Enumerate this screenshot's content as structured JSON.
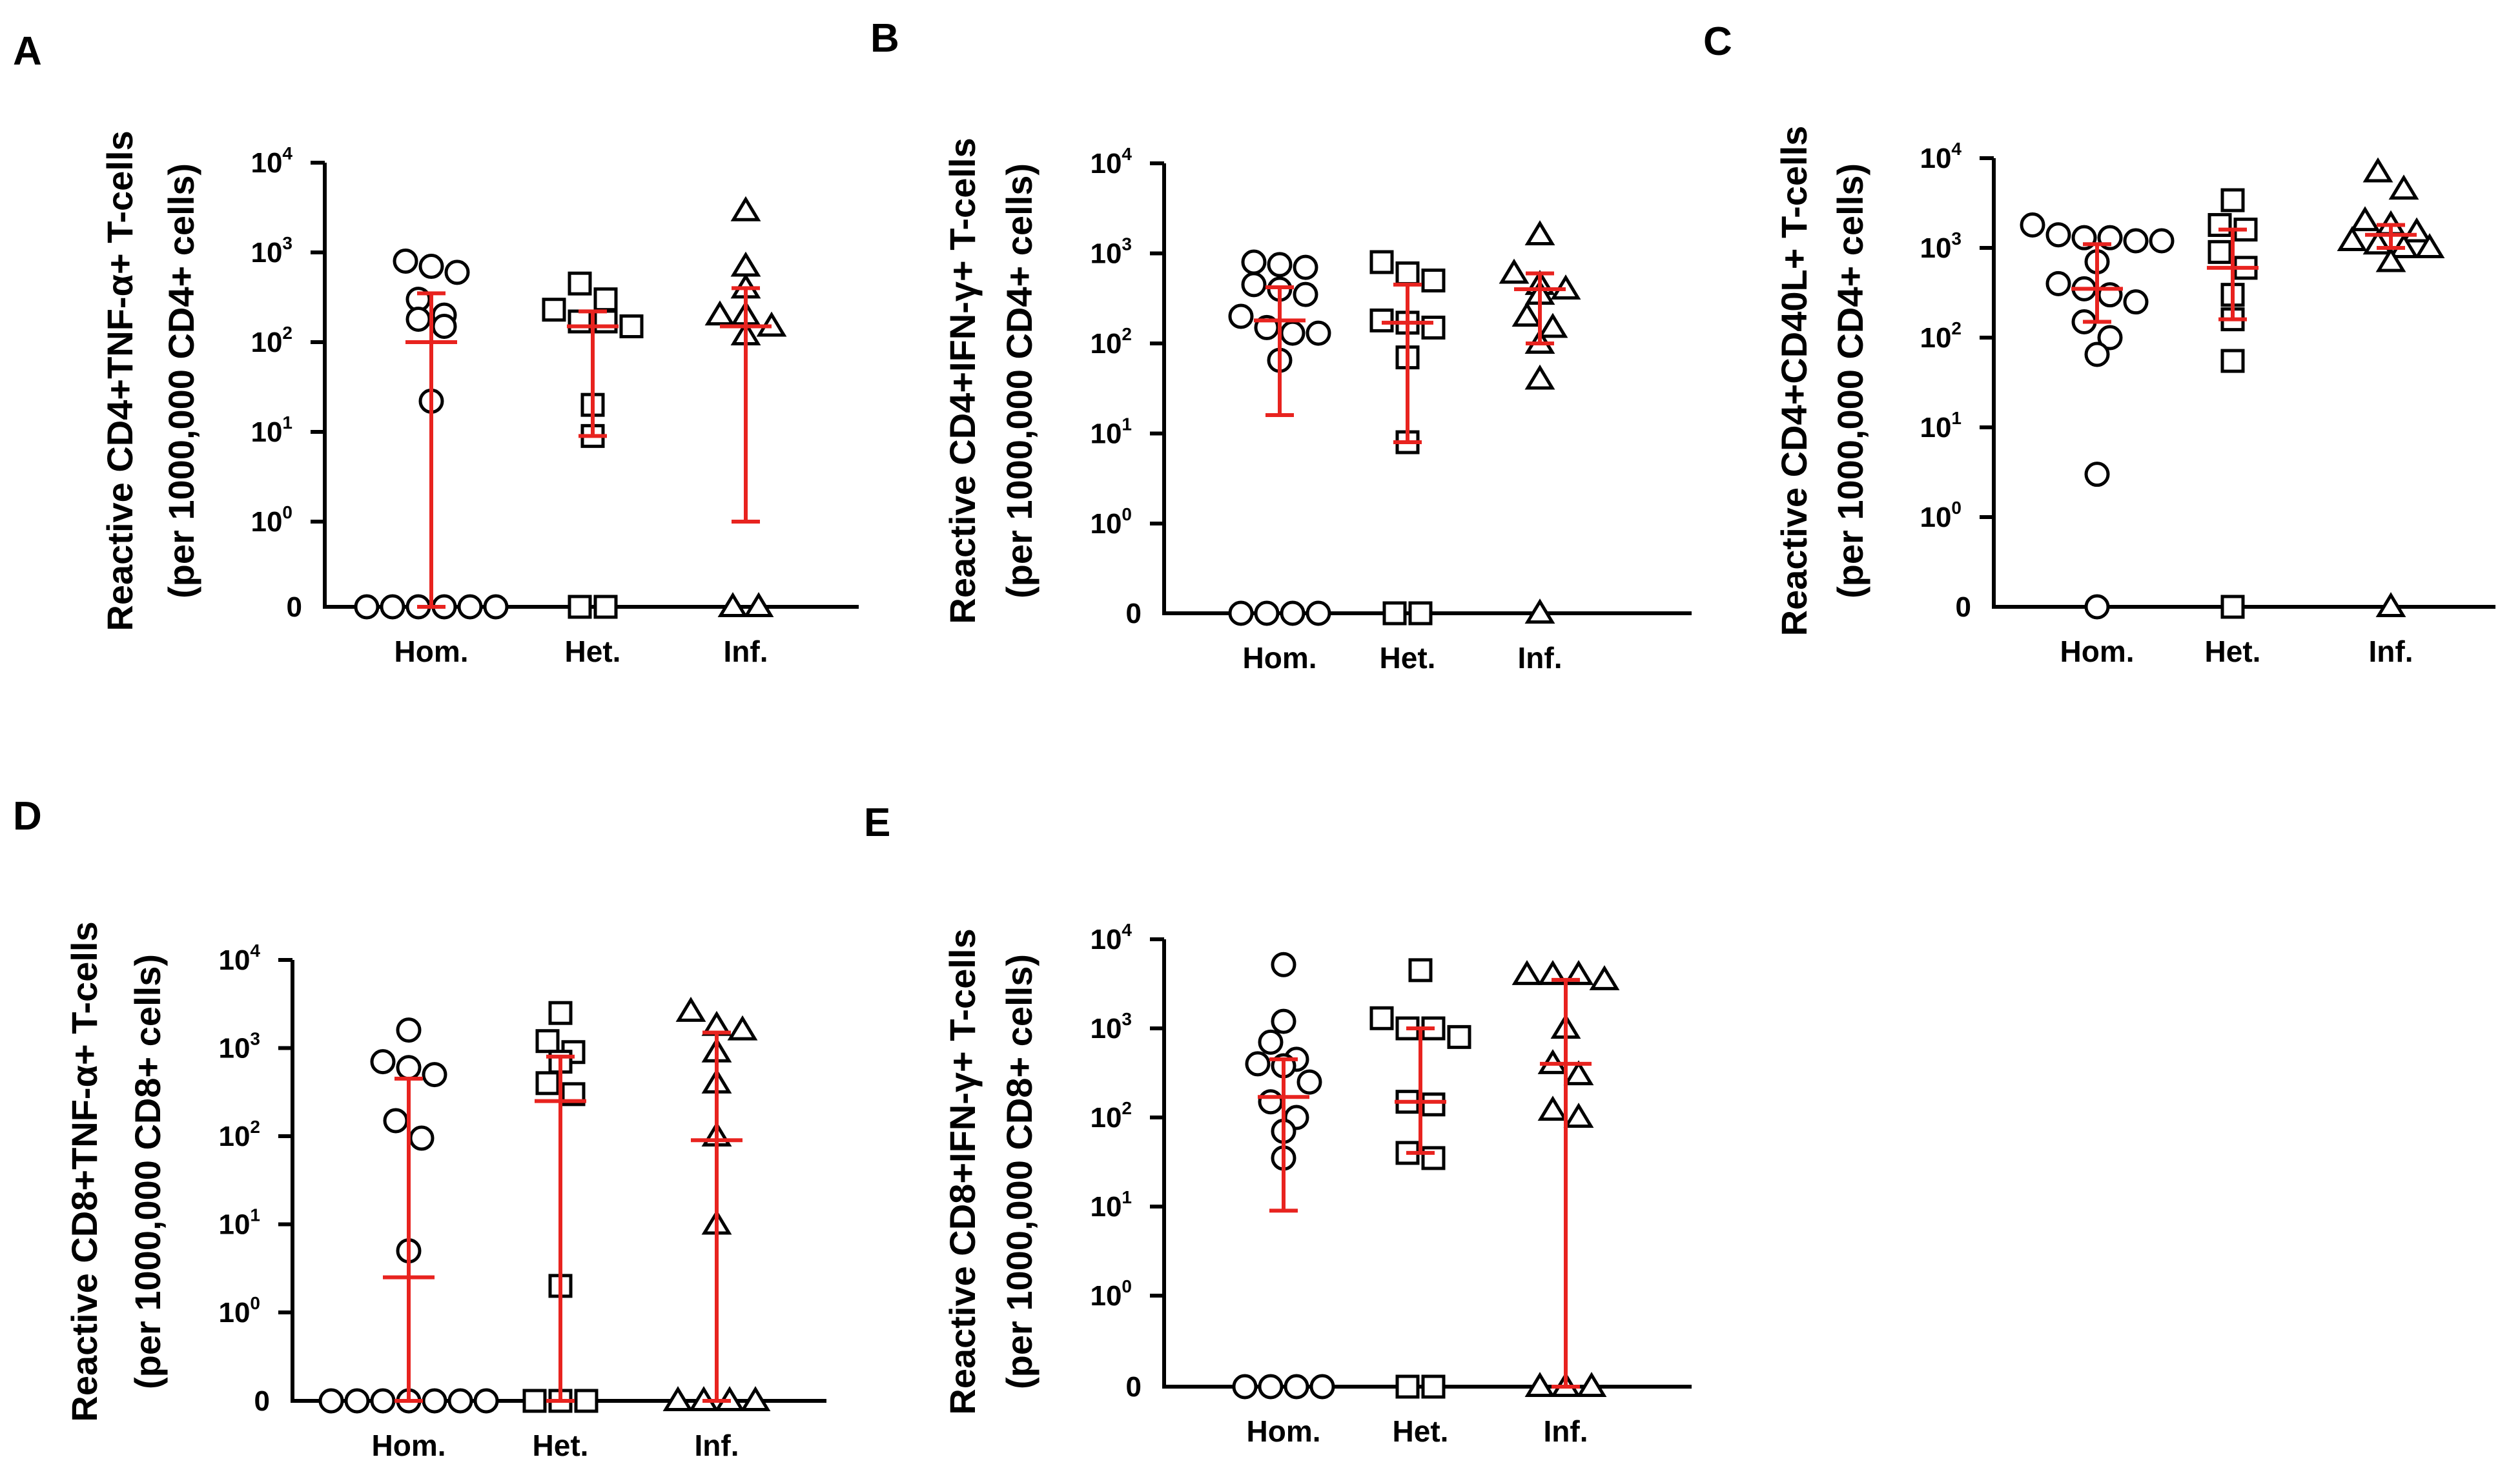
{
  "chart_data": [
    {
      "id": "A",
      "type": "scatter",
      "title": "A",
      "ylabel_lines": [
        "Reactive CD4+TNF-α+ T-cells",
        "(per 1000,000 CD4+ cells)"
      ],
      "yscale": "log-with-zero",
      "ylim": [
        0,
        10000
      ],
      "yticks": [
        "0",
        "10",
        "10",
        "10",
        "10",
        "10"
      ],
      "ytick_exponents": [
        "",
        "0",
        "1",
        "2",
        "3",
        "4"
      ],
      "categories": [
        "Hom.",
        "Het.",
        "Inf."
      ],
      "series": [
        {
          "name": "Hom.",
          "marker": "circle",
          "values": [
            800,
            700,
            600,
            300,
            200,
            180,
            150,
            22,
            0,
            0,
            0,
            0,
            0,
            0
          ],
          "median": 100,
          "lower": 0,
          "upper": 350
        },
        {
          "name": "Het.",
          "marker": "square",
          "values": [
            450,
            300,
            230,
            170,
            150,
            170,
            20,
            9,
            0,
            0
          ],
          "median": 150,
          "lower": 9,
          "upper": 220
        },
        {
          "name": "Inf.",
          "marker": "triangle",
          "values": [
            2900,
            700,
            400,
            200,
            200,
            150,
            120,
            0,
            0
          ],
          "median": 150,
          "lower": 1,
          "upper": 400
        }
      ]
    },
    {
      "id": "B",
      "type": "scatter",
      "title": "B",
      "ylabel_lines": [
        "Reactive CD4+IFN-γ+ T-cells",
        "(per 1000,000 CD4+ cells)"
      ],
      "yscale": "log-with-zero",
      "ylim": [
        0,
        10000
      ],
      "yticks": [
        "0",
        "10",
        "10",
        "10",
        "10",
        "10"
      ],
      "ytick_exponents": [
        "",
        "0",
        "1",
        "2",
        "3",
        "4"
      ],
      "categories": [
        "Hom.",
        "Het.",
        "Inf."
      ],
      "series": [
        {
          "name": "Hom.",
          "marker": "circle",
          "values": [
            800,
            750,
            700,
            450,
            400,
            350,
            200,
            150,
            130,
            130,
            65,
            0,
            0,
            0,
            0
          ],
          "median": 180,
          "lower": 16,
          "upper": 420
        },
        {
          "name": "Het.",
          "marker": "square",
          "values": [
            800,
            600,
            500,
            180,
            170,
            150,
            70,
            8,
            0,
            0
          ],
          "median": 170,
          "lower": 8,
          "upper": 450
        },
        {
          "name": "Inf.",
          "marker": "triangle",
          "values": [
            1600,
            600,
            450,
            400,
            350,
            200,
            150,
            100,
            40,
            0
          ],
          "median": 400,
          "lower": 100,
          "upper": 600
        }
      ]
    },
    {
      "id": "C",
      "type": "scatter",
      "title": "C",
      "ylabel_lines": [
        "Reactive CD4+CD40L+ T-cells",
        "(per 1000,000 CD4+ cells)"
      ],
      "yscale": "log-with-zero",
      "ylim": [
        0,
        10000
      ],
      "yticks": [
        "0",
        "10",
        "10",
        "10",
        "10",
        "10"
      ],
      "ytick_exponents": [
        "",
        "0",
        "1",
        "2",
        "3",
        "4"
      ],
      "categories": [
        "Hom.",
        "Het.",
        "Inf."
      ],
      "series": [
        {
          "name": "Hom.",
          "marker": "circle",
          "values": [
            1800,
            1400,
            1300,
            1300,
            1200,
            1200,
            700,
            400,
            350,
            300,
            250,
            150,
            100,
            65,
            3,
            0
          ],
          "median": 350,
          "lower": 150,
          "upper": 1100
        },
        {
          "name": "Het.",
          "marker": "square",
          "values": [
            3400,
            1800,
            1600,
            900,
            600,
            300,
            160,
            55,
            0
          ],
          "median": 600,
          "lower": 160,
          "upper": 1600
        },
        {
          "name": "Inf.",
          "marker": "triangle",
          "values": [
            7000,
            4500,
            2000,
            1800,
            1500,
            1200,
            1100,
            1000,
            1000,
            700,
            0
          ],
          "median": 1400,
          "lower": 1000,
          "upper": 1800
        }
      ]
    },
    {
      "id": "D",
      "type": "scatter",
      "title": "D",
      "ylabel_lines": [
        "Reactive CD8+TNF-α+ T-cells",
        "(per 1000,000 CD8+ cells)"
      ],
      "yscale": "log-with-zero",
      "ylim": [
        0,
        10000
      ],
      "yticks": [
        "0",
        "10",
        "10",
        "10",
        "10",
        "10"
      ],
      "ytick_exponents": [
        "",
        "0",
        "1",
        "2",
        "3",
        "4"
      ],
      "categories": [
        "Hom.",
        "Het.",
        "Inf."
      ],
      "series": [
        {
          "name": "Hom.",
          "marker": "circle",
          "values": [
            1600,
            700,
            600,
            500,
            150,
            95,
            5,
            0,
            0,
            0,
            0,
            0,
            0,
            0
          ],
          "median": 2.5,
          "lower": 0,
          "upper": 450
        },
        {
          "name": "Het.",
          "marker": "square",
          "values": [
            2500,
            1200,
            900,
            700,
            400,
            300,
            2,
            0,
            0,
            0
          ],
          "median": 250,
          "lower": 0,
          "upper": 800
        },
        {
          "name": "Inf.",
          "marker": "triangle",
          "values": [
            2600,
            1800,
            1600,
            900,
            400,
            100,
            10,
            0,
            0,
            0,
            0
          ],
          "median": 90,
          "lower": 0,
          "upper": 1500
        }
      ]
    },
    {
      "id": "E",
      "type": "scatter",
      "title": "E",
      "ylabel_lines": [
        "Reactive CD8+IFN-γ+ T-cells",
        "(per 1000,000 CD8+ cells)"
      ],
      "yscale": "log-with-zero",
      "ylim": [
        0,
        10000
      ],
      "yticks": [
        "0",
        "10",
        "10",
        "10",
        "10",
        "10"
      ],
      "ytick_exponents": [
        "",
        "0",
        "1",
        "2",
        "3",
        "4"
      ],
      "categories": [
        "Hom.",
        "Het.",
        "Inf."
      ],
      "series": [
        {
          "name": "Hom.",
          "marker": "circle",
          "values": [
            5200,
            1200,
            700,
            450,
            400,
            380,
            250,
            150,
            100,
            70,
            35,
            0,
            0,
            0,
            0
          ],
          "median": 170,
          "lower": 9,
          "upper": 450
        },
        {
          "name": "Het.",
          "marker": "square",
          "values": [
            4500,
            1300,
            1000,
            1000,
            800,
            150,
            140,
            40,
            35,
            0,
            0
          ],
          "median": 150,
          "lower": 40,
          "upper": 1000
        },
        {
          "name": "Inf.",
          "marker": "triangle",
          "values": [
            4000,
            4000,
            4000,
            3500,
            1000,
            400,
            300,
            120,
            100,
            0,
            0,
            0
          ],
          "median": 400,
          "lower": 0,
          "upper": 3500
        }
      ]
    }
  ]
}
